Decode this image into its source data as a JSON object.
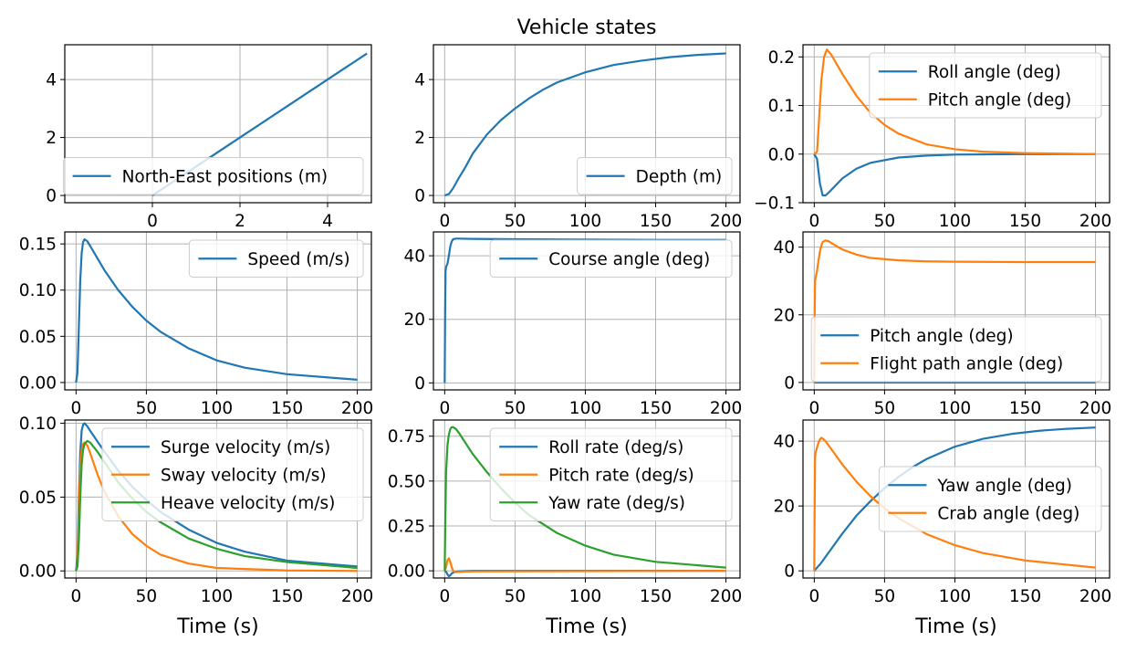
{
  "figure": {
    "title": "Vehicle states",
    "xlabel": "Time (s)"
  },
  "colors": {
    "c0": "#1f77b4",
    "c1": "#ff7f0e",
    "c2": "#2ca02c",
    "grid": "#b0b0b0"
  },
  "chart_data": [
    {
      "type": "line",
      "xlim": [
        -2,
        5
      ],
      "ylim": [
        -0.25,
        5.2
      ],
      "xticks": [
        0,
        2,
        4
      ],
      "yticks": [
        0,
        2,
        4
      ],
      "grid": true,
      "legend_position": "lower-right",
      "xlabel": "",
      "series": [
        {
          "name": "North-East positions (m)",
          "color": "#1f77b4",
          "x": [
            0,
            1,
            2,
            3,
            4,
            4.9
          ],
          "y": [
            0,
            1,
            2,
            3,
            4,
            4.9
          ]
        }
      ]
    },
    {
      "type": "line",
      "xlim": [
        -8,
        210
      ],
      "ylim": [
        -0.25,
        5.2
      ],
      "xticks": [
        0,
        50,
        100,
        150,
        200
      ],
      "yticks": [
        0,
        2,
        4
      ],
      "grid": true,
      "legend_position": "lower-right",
      "xlabel": "",
      "series": [
        {
          "name": "Depth (m)",
          "color": "#1f77b4",
          "x": [
            0,
            3,
            6,
            10,
            15,
            20,
            30,
            40,
            50,
            60,
            70,
            80,
            100,
            120,
            140,
            160,
            180,
            200
          ],
          "y": [
            0,
            0.05,
            0.25,
            0.6,
            1.0,
            1.45,
            2.1,
            2.6,
            3.0,
            3.35,
            3.65,
            3.9,
            4.25,
            4.5,
            4.65,
            4.77,
            4.85,
            4.9
          ]
        }
      ]
    },
    {
      "type": "line",
      "xlim": [
        -8,
        210
      ],
      "ylim": [
        -0.1,
        0.225
      ],
      "xticks": [
        0,
        50,
        100,
        150,
        200
      ],
      "yticks": [
        -0.1,
        0.0,
        0.1,
        0.2
      ],
      "grid": true,
      "legend_position": "upper-right",
      "xlabel": "",
      "series": [
        {
          "name": "Roll angle (deg)",
          "color": "#1f77b4",
          "x": [
            0,
            2,
            4,
            6,
            8,
            10,
            15,
            20,
            30,
            40,
            60,
            80,
            100,
            150,
            200
          ],
          "y": [
            0,
            -0.01,
            -0.06,
            -0.085,
            -0.085,
            -0.08,
            -0.065,
            -0.05,
            -0.03,
            -0.018,
            -0.007,
            -0.003,
            -0.001,
            0,
            0
          ]
        },
        {
          "name": "Pitch angle (deg)",
          "color": "#ff7f0e",
          "x": [
            0,
            2,
            3,
            5,
            7,
            9,
            12,
            15,
            20,
            30,
            40,
            50,
            60,
            80,
            100,
            120,
            150,
            200
          ],
          "y": [
            0,
            0.005,
            0.05,
            0.15,
            0.2,
            0.215,
            0.205,
            0.19,
            0.165,
            0.12,
            0.085,
            0.06,
            0.042,
            0.02,
            0.01,
            0.005,
            0.002,
            0
          ]
        }
      ]
    },
    {
      "type": "line",
      "xlim": [
        -8,
        210
      ],
      "ylim": [
        -0.008,
        0.163
      ],
      "xticks": [
        0,
        50,
        100,
        150,
        200
      ],
      "yticks": [
        0.0,
        0.05,
        0.1,
        0.15
      ],
      "grid": true,
      "legend_position": "upper-right",
      "xlabel": "",
      "series": [
        {
          "name": "Speed (m/s)",
          "color": "#1f77b4",
          "x": [
            0,
            1,
            2,
            3,
            4,
            5,
            6,
            8,
            10,
            15,
            20,
            30,
            40,
            50,
            60,
            80,
            100,
            120,
            150,
            200
          ],
          "y": [
            0,
            0.01,
            0.06,
            0.11,
            0.14,
            0.152,
            0.155,
            0.153,
            0.148,
            0.135,
            0.122,
            0.1,
            0.082,
            0.067,
            0.055,
            0.037,
            0.024,
            0.016,
            0.009,
            0.003
          ]
        }
      ]
    },
    {
      "type": "line",
      "xlim": [
        -8,
        210
      ],
      "ylim": [
        -2.2,
        47.5
      ],
      "xticks": [
        0,
        50,
        100,
        150,
        200
      ],
      "yticks": [
        0,
        20,
        40
      ],
      "grid": true,
      "legend_position": "upper-right",
      "xlabel": "",
      "series": [
        {
          "name": "Course angle (deg)",
          "color": "#1f77b4",
          "x": [
            0,
            0.3,
            0.6,
            1,
            2,
            3,
            4,
            5,
            6,
            8,
            10,
            20,
            50,
            100,
            150,
            200
          ],
          "y": [
            0,
            20,
            35,
            36.5,
            37.5,
            40,
            43,
            44.5,
            45.2,
            45.4,
            45.4,
            45.3,
            45.2,
            45.1,
            45.0,
            45.0
          ]
        }
      ]
    },
    {
      "type": "line",
      "xlim": [
        -8,
        210
      ],
      "ylim": [
        -2.2,
        44.5
      ],
      "xticks": [
        0,
        50,
        100,
        150,
        200
      ],
      "yticks": [
        0,
        20,
        40
      ],
      "grid": true,
      "legend_position": "lower-right",
      "xlabel": "",
      "series": [
        {
          "name": "Pitch angle (deg)",
          "color": "#1f77b4",
          "x": [
            0,
            200
          ],
          "y": [
            0,
            0
          ]
        },
        {
          "name": "Flight path angle (deg)",
          "color": "#ff7f0e",
          "x": [
            0,
            0.3,
            0.6,
            1,
            2,
            3,
            4,
            5,
            6,
            8,
            10,
            15,
            20,
            30,
            40,
            60,
            80,
            100,
            150,
            200
          ],
          "y": [
            0,
            20,
            30,
            31,
            33,
            36,
            38.5,
            40.5,
            41.5,
            42,
            41.8,
            40.5,
            39.3,
            37.8,
            36.8,
            36.1,
            35.8,
            35.7,
            35.6,
            35.6
          ]
        }
      ]
    },
    {
      "type": "line",
      "xlim": [
        -8,
        210
      ],
      "ylim": [
        -0.0048,
        0.1022
      ],
      "xticks": [
        0,
        50,
        100,
        150,
        200
      ],
      "yticks": [
        0.0,
        0.05,
        0.1
      ],
      "grid": true,
      "legend_position": "upper-right",
      "xlabel": "Time (s)",
      "series": [
        {
          "name": "Surge velocity (m/s)",
          "color": "#1f77b4",
          "x": [
            0,
            1,
            2,
            3,
            4,
            5,
            6,
            8,
            10,
            15,
            20,
            30,
            40,
            50,
            60,
            80,
            100,
            120,
            150,
            200
          ],
          "y": [
            0,
            0.01,
            0.05,
            0.08,
            0.095,
            0.099,
            0.1,
            0.098,
            0.095,
            0.088,
            0.081,
            0.068,
            0.057,
            0.048,
            0.04,
            0.028,
            0.019,
            0.013,
            0.007,
            0.003
          ]
        },
        {
          "name": "Sway velocity (m/s)",
          "color": "#ff7f0e",
          "x": [
            0,
            1,
            2,
            3,
            4,
            5,
            6,
            8,
            10,
            15,
            20,
            30,
            40,
            50,
            60,
            80,
            100,
            150,
            200
          ],
          "y": [
            0,
            0.005,
            0.04,
            0.07,
            0.082,
            0.086,
            0.087,
            0.085,
            0.08,
            0.066,
            0.054,
            0.037,
            0.025,
            0.017,
            0.011,
            0.005,
            0.002,
            0.0003,
            0
          ]
        },
        {
          "name": "Heave velocity (m/s)",
          "color": "#2ca02c",
          "x": [
            0,
            1,
            2,
            3,
            4,
            5,
            6,
            8,
            10,
            15,
            20,
            30,
            40,
            50,
            60,
            80,
            100,
            120,
            150,
            200
          ],
          "y": [
            0,
            0.003,
            0.02,
            0.05,
            0.072,
            0.082,
            0.086,
            0.088,
            0.087,
            0.081,
            0.074,
            0.06,
            0.049,
            0.04,
            0.033,
            0.022,
            0.015,
            0.01,
            0.006,
            0.002
          ]
        }
      ]
    },
    {
      "type": "line",
      "xlim": [
        -8,
        210
      ],
      "ylim": [
        -0.04,
        0.84
      ],
      "xticks": [
        0,
        50,
        100,
        150,
        200
      ],
      "yticks": [
        0.0,
        0.25,
        0.5,
        0.75
      ],
      "grid": true,
      "legend_position": "upper-right",
      "xlabel": "Time (s)",
      "series": [
        {
          "name": "Roll rate (deg/s)",
          "color": "#1f77b4",
          "x": [
            0,
            1,
            2,
            3,
            4,
            5,
            6,
            8,
            10,
            20,
            200
          ],
          "y": [
            0,
            -0.005,
            -0.02,
            -0.03,
            -0.025,
            -0.015,
            -0.01,
            -0.005,
            -0.003,
            0,
            0
          ]
        },
        {
          "name": "Pitch rate (deg/s)",
          "color": "#ff7f0e",
          "x": [
            0,
            1,
            2,
            3,
            4,
            5,
            6,
            8,
            10,
            20,
            200
          ],
          "y": [
            0,
            0.02,
            0.06,
            0.07,
            0.05,
            0.02,
            0.0,
            -0.008,
            -0.006,
            -0.003,
            0
          ]
        },
        {
          "name": "Yaw rate (deg/s)",
          "color": "#2ca02c",
          "x": [
            0,
            0.5,
            1,
            2,
            3,
            4,
            5,
            6,
            8,
            10,
            15,
            20,
            30,
            40,
            50,
            60,
            80,
            100,
            120,
            150,
            200
          ],
          "y": [
            0,
            0.3,
            0.55,
            0.7,
            0.76,
            0.79,
            0.8,
            0.8,
            0.79,
            0.77,
            0.71,
            0.65,
            0.55,
            0.46,
            0.38,
            0.31,
            0.21,
            0.14,
            0.09,
            0.05,
            0.018
          ]
        }
      ]
    },
    {
      "type": "line",
      "xlim": [
        -8,
        210
      ],
      "ylim": [
        -2.2,
        46.5
      ],
      "xticks": [
        0,
        50,
        100,
        150,
        200
      ],
      "yticks": [
        0,
        20,
        40
      ],
      "grid": true,
      "legend_position": "right",
      "xlabel": "Time (s)",
      "series": [
        {
          "name": "Yaw angle (deg)",
          "color": "#1f77b4",
          "x": [
            0,
            5,
            10,
            20,
            30,
            40,
            50,
            60,
            70,
            80,
            100,
            120,
            140,
            160,
            180,
            200
          ],
          "y": [
            0,
            2.5,
            5.5,
            11.5,
            17,
            21.5,
            25.5,
            29,
            32,
            34.5,
            38.3,
            40.7,
            42.2,
            43.2,
            43.8,
            44.2
          ]
        },
        {
          "name": "Crab angle (deg)",
          "color": "#ff7f0e",
          "x": [
            0,
            0.3,
            0.6,
            1,
            2,
            3,
            4,
            5,
            6,
            8,
            10,
            15,
            20,
            30,
            40,
            50,
            60,
            80,
            100,
            120,
            150,
            200
          ],
          "y": [
            0,
            20,
            35,
            36.5,
            38,
            39.5,
            40.5,
            41,
            40.8,
            40,
            38.8,
            35.8,
            32.8,
            27.5,
            23,
            19.3,
            16.2,
            11.3,
            7.9,
            5.5,
            3.2,
            1
          ]
        }
      ]
    }
  ]
}
